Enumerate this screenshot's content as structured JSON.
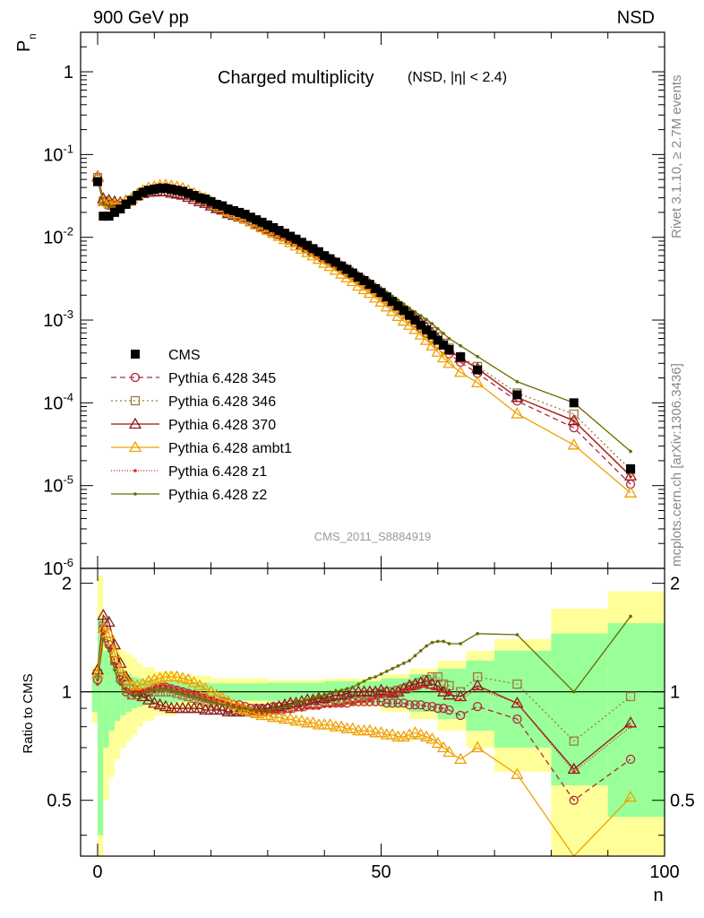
{
  "header": {
    "left": "900 GeV pp",
    "right": "NSD"
  },
  "side_labels": {
    "rivet": "Rivet 3.1.10, ≥ 2.7M events",
    "mcplots": "mcplots.cern.ch [arXiv:1306.3436]"
  },
  "chart_data": {
    "type": "line",
    "title": "Charged multiplicity",
    "subtitle": "(NSD, |η| < 2.4)",
    "analysis_id": "CMS_2011_S8884919",
    "xlabel": "n",
    "ylabel": "P",
    "ylabel_sub": "n",
    "ratio_ylabel": "Ratio to CMS",
    "xlim": [
      -3,
      100
    ],
    "ylim": [
      1e-06,
      3
    ],
    "ratio_ylim": [
      0.35,
      2.2
    ],
    "x_ticks": [
      "0",
      "50",
      "100"
    ],
    "y_ticks": [
      "10^-6",
      "10^-5",
      "10^-4",
      "10^-3",
      "10^-2",
      "10^-1",
      "1"
    ],
    "ratio_ticks": [
      "0.5",
      "1",
      "2"
    ],
    "legend": [
      "CMS",
      "Pythia 6.428 345",
      "Pythia 6.428 346",
      "Pythia 6.428 370",
      "Pythia 6.428 ambt1",
      "Pythia 6.428 z1",
      "Pythia 6.428 z2"
    ],
    "data": {
      "name": "CMS",
      "x": [
        0,
        1,
        2,
        3,
        4,
        5,
        6,
        7,
        8,
        9,
        10,
        11,
        12,
        13,
        14,
        15,
        16,
        17,
        18,
        19,
        20,
        21,
        22,
        23,
        24,
        25,
        26,
        27,
        28,
        29,
        30,
        31,
        32,
        33,
        34,
        35,
        36,
        37,
        38,
        39,
        40,
        41,
        42,
        43,
        44,
        45,
        46,
        47,
        48,
        49,
        50,
        51,
        52,
        53,
        54,
        55,
        56,
        57,
        58,
        59,
        60,
        61,
        62,
        64,
        67,
        74,
        84,
        94
      ],
      "y": [
        0.047,
        0.018,
        0.018,
        0.02,
        0.022,
        0.025,
        0.028,
        0.032,
        0.035,
        0.037,
        0.038,
        0.039,
        0.039,
        0.038,
        0.037,
        0.036,
        0.034,
        0.032,
        0.03,
        0.029,
        0.027,
        0.025,
        0.024,
        0.022,
        0.021,
        0.02,
        0.019,
        0.0175,
        0.0163,
        0.0152,
        0.0141,
        0.0131,
        0.0121,
        0.0112,
        0.0103,
        0.0095,
        0.0087,
        0.008,
        0.0073,
        0.0067,
        0.006,
        0.0055,
        0.005,
        0.0045,
        0.0041,
        0.0037,
        0.0033,
        0.003,
        0.0027,
        0.0024,
        0.00215,
        0.0019,
        0.00168,
        0.00148,
        0.0013,
        0.00114,
        0.001,
        0.00087,
        0.00076,
        0.00066,
        0.00057,
        0.0005,
        0.00044,
        0.00036,
        0.00025,
        0.000125,
        0.0001,
        1.6e-05
      ],
      "band_x_edges": [
        -1,
        0,
        1,
        2,
        3,
        4,
        5,
        6,
        7,
        8,
        10,
        14,
        20,
        30,
        40,
        50,
        55,
        60,
        65,
        70,
        80,
        90,
        100
      ],
      "band_stat_rel": [
        0.12,
        0.6,
        0.3,
        0.22,
        0.17,
        0.14,
        0.12,
        0.1,
        0.09,
        0.08,
        0.07,
        0.06,
        0.055,
        0.06,
        0.07,
        0.09,
        0.12,
        0.16,
        0.22,
        0.3,
        0.45,
        0.55,
        0.6
      ],
      "band_tot_rel": [
        0.18,
        1.1,
        0.5,
        0.42,
        0.35,
        0.3,
        0.27,
        0.24,
        0.2,
        0.17,
        0.14,
        0.11,
        0.09,
        0.08,
        0.09,
        0.12,
        0.16,
        0.22,
        0.3,
        0.4,
        0.7,
        0.9,
        1.0
      ]
    },
    "series": [
      {
        "name": "Pythia 6.428 345",
        "color": "#b2263a",
        "dash": "6,4",
        "marker": "circle",
        "marker_every": 1,
        "x": [
          0,
          1,
          2,
          3,
          4,
          5,
          6,
          7,
          8,
          9,
          10,
          11,
          12,
          13,
          14,
          15,
          16,
          17,
          18,
          19,
          20,
          21,
          22,
          23,
          24,
          25,
          26,
          27,
          28,
          29,
          30,
          31,
          32,
          33,
          34,
          35,
          36,
          37,
          38,
          39,
          40,
          41,
          42,
          43,
          44,
          45,
          46,
          47,
          48,
          49,
          50,
          51,
          52,
          53,
          54,
          55,
          56,
          57,
          58,
          59,
          60,
          61,
          62,
          64,
          67,
          74,
          84,
          94
        ],
        "ratio": [
          1.08,
          1.5,
          1.35,
          1.22,
          1.08,
          1.0,
          0.98,
          0.98,
          0.99,
          1.0,
          1.02,
          1.03,
          1.03,
          1.02,
          1.01,
          1.0,
          0.99,
          0.98,
          0.97,
          0.96,
          0.95,
          0.95,
          0.94,
          0.93,
          0.92,
          0.92,
          0.91,
          0.9,
          0.9,
          0.9,
          0.9,
          0.91,
          0.91,
          0.91,
          0.92,
          0.92,
          0.92,
          0.92,
          0.92,
          0.92,
          0.93,
          0.93,
          0.93,
          0.93,
          0.93,
          0.94,
          0.94,
          0.94,
          0.94,
          0.94,
          0.94,
          0.93,
          0.93,
          0.93,
          0.93,
          0.92,
          0.92,
          0.92,
          0.91,
          0.91,
          0.9,
          0.9,
          0.89,
          0.86,
          0.91,
          0.84,
          0.5,
          0.65
        ]
      },
      {
        "name": "Pythia 6.428 346",
        "color": "#a07840",
        "dash": "2,3",
        "marker": "square",
        "marker_every": 1,
        "x": [
          0,
          1,
          2,
          3,
          4,
          5,
          6,
          7,
          8,
          9,
          10,
          11,
          12,
          13,
          14,
          15,
          16,
          17,
          18,
          19,
          20,
          21,
          22,
          23,
          24,
          25,
          26,
          27,
          28,
          29,
          30,
          31,
          32,
          33,
          34,
          35,
          36,
          37,
          38,
          39,
          40,
          41,
          42,
          43,
          44,
          45,
          46,
          47,
          48,
          49,
          50,
          51,
          52,
          53,
          54,
          55,
          56,
          57,
          58,
          59,
          60,
          61,
          62,
          64,
          67,
          74,
          84,
          94
        ],
        "ratio": [
          1.12,
          1.52,
          1.38,
          1.22,
          1.1,
          1.02,
          0.98,
          0.98,
          0.99,
          1.0,
          1.0,
          1.0,
          1.0,
          1.0,
          0.99,
          0.98,
          0.97,
          0.96,
          0.95,
          0.94,
          0.93,
          0.92,
          0.91,
          0.9,
          0.89,
          0.89,
          0.88,
          0.88,
          0.88,
          0.88,
          0.88,
          0.89,
          0.89,
          0.9,
          0.9,
          0.91,
          0.91,
          0.92,
          0.92,
          0.93,
          0.94,
          0.94,
          0.95,
          0.95,
          0.96,
          0.96,
          0.97,
          0.98,
          0.98,
          0.99,
          0.99,
          1.0,
          1.0,
          1.01,
          1.02,
          1.03,
          1.04,
          1.06,
          1.08,
          1.1,
          1.1,
          1.05,
          1.04,
          1.0,
          1.1,
          1.05,
          0.73,
          0.97
        ]
      },
      {
        "name": "Pythia 6.428 370",
        "color": "#8b1a1a",
        "dash": "",
        "marker": "triangle",
        "marker_every": 1,
        "x": [
          0,
          1,
          2,
          3,
          4,
          5,
          6,
          7,
          8,
          9,
          10,
          11,
          12,
          13,
          14,
          15,
          16,
          17,
          18,
          19,
          20,
          21,
          22,
          23,
          24,
          25,
          26,
          27,
          28,
          29,
          30,
          31,
          32,
          33,
          34,
          35,
          36,
          37,
          38,
          39,
          40,
          41,
          42,
          43,
          44,
          45,
          46,
          47,
          48,
          49,
          50,
          51,
          52,
          53,
          54,
          55,
          56,
          57,
          58,
          59,
          60,
          61,
          62,
          64,
          67,
          74,
          84,
          94
        ],
        "ratio": [
          1.15,
          1.63,
          1.56,
          1.35,
          1.2,
          1.1,
          1.05,
          1.0,
          0.97,
          0.95,
          0.93,
          0.92,
          0.91,
          0.9,
          0.9,
          0.9,
          0.9,
          0.9,
          0.9,
          0.89,
          0.89,
          0.89,
          0.89,
          0.88,
          0.88,
          0.88,
          0.88,
          0.88,
          0.89,
          0.89,
          0.9,
          0.9,
          0.91,
          0.92,
          0.93,
          0.93,
          0.94,
          0.95,
          0.95,
          0.96,
          0.96,
          0.97,
          0.98,
          0.98,
          0.99,
          1.0,
          1.0,
          1.0,
          1.0,
          1.0,
          1.01,
          1.0,
          0.99,
          1.0,
          1.02,
          1.04,
          1.05,
          1.06,
          1.07,
          1.05,
          1.04,
          1.0,
          0.98,
          0.97,
          1.04,
          0.93,
          0.61,
          0.82
        ]
      },
      {
        "name": "Pythia 6.428 ambt1",
        "color": "#f0a000",
        "dash": "",
        "marker": "triangle",
        "marker_every": 1,
        "x": [
          0,
          1,
          2,
          3,
          4,
          5,
          6,
          7,
          8,
          9,
          10,
          11,
          12,
          13,
          14,
          15,
          16,
          17,
          18,
          19,
          20,
          21,
          22,
          23,
          24,
          25,
          26,
          27,
          28,
          29,
          30,
          31,
          32,
          33,
          34,
          35,
          36,
          37,
          38,
          39,
          40,
          41,
          42,
          43,
          44,
          45,
          46,
          47,
          48,
          49,
          50,
          51,
          52,
          53,
          54,
          55,
          56,
          57,
          58,
          59,
          60,
          61,
          62,
          64,
          67,
          74,
          84,
          94
        ],
        "ratio": [
          1.12,
          1.5,
          1.45,
          1.28,
          1.15,
          1.08,
          1.05,
          1.04,
          1.05,
          1.07,
          1.08,
          1.09,
          1.1,
          1.1,
          1.1,
          1.09,
          1.08,
          1.06,
          1.04,
          1.02,
          1.0,
          0.98,
          0.96,
          0.94,
          0.92,
          0.9,
          0.89,
          0.88,
          0.87,
          0.86,
          0.86,
          0.85,
          0.85,
          0.84,
          0.84,
          0.83,
          0.83,
          0.82,
          0.82,
          0.81,
          0.81,
          0.81,
          0.8,
          0.8,
          0.79,
          0.79,
          0.78,
          0.78,
          0.78,
          0.77,
          0.77,
          0.76,
          0.76,
          0.75,
          0.75,
          0.76,
          0.77,
          0.76,
          0.75,
          0.74,
          0.72,
          0.7,
          0.68,
          0.65,
          0.7,
          0.59,
          0.31,
          0.51
        ]
      },
      {
        "name": "Pythia 6.428 z1",
        "color": "#e02020",
        "dash": "1,2",
        "marker": "dot",
        "marker_every": 1,
        "x": [
          0,
          1,
          2,
          3,
          4,
          5,
          6,
          7,
          8,
          9,
          10,
          11,
          12,
          13,
          14,
          15,
          16,
          17,
          18,
          19,
          20,
          21,
          22,
          23,
          24,
          25,
          26,
          27,
          28,
          29,
          30,
          31,
          32,
          33,
          34,
          35,
          36,
          37,
          38,
          39,
          40,
          41,
          42,
          43,
          44,
          45,
          46,
          47,
          48,
          49,
          50,
          51,
          52,
          53,
          54,
          55,
          56,
          57,
          58,
          59,
          60,
          61,
          62,
          64,
          67,
          74,
          84,
          94
        ],
        "ratio": [
          1.05,
          1.45,
          1.32,
          1.2,
          1.08,
          1.02,
          1.0,
          1.0,
          1.01,
          1.02,
          1.03,
          1.04,
          1.04,
          1.03,
          1.02,
          1.01,
          1.0,
          0.99,
          0.98,
          0.97,
          0.96,
          0.95,
          0.94,
          0.93,
          0.92,
          0.91,
          0.9,
          0.89,
          0.88,
          0.88,
          0.88,
          0.88,
          0.88,
          0.88,
          0.88,
          0.89,
          0.89,
          0.9,
          0.9,
          0.9,
          0.91,
          0.91,
          0.92,
          0.92,
          0.93,
          0.93,
          0.94,
          0.94,
          0.95,
          0.96,
          0.97,
          0.98,
          0.99,
          1.0,
          1.01,
          1.02,
          1.02,
          1.03,
          1.03,
          1.02,
          1.01,
          1.0,
          0.99,
          0.95,
          1.02,
          0.93,
          0.6,
          0.8
        ]
      },
      {
        "name": "Pythia 6.428 z2",
        "color": "#6b6b00",
        "dash": "",
        "marker": "dot",
        "marker_every": 1,
        "x": [
          0,
          1,
          2,
          3,
          4,
          5,
          6,
          7,
          8,
          9,
          10,
          11,
          12,
          13,
          14,
          15,
          16,
          17,
          18,
          19,
          20,
          21,
          22,
          23,
          24,
          25,
          26,
          27,
          28,
          29,
          30,
          31,
          32,
          33,
          34,
          35,
          36,
          37,
          38,
          39,
          40,
          41,
          42,
          43,
          44,
          45,
          46,
          47,
          48,
          49,
          50,
          51,
          52,
          53,
          54,
          55,
          56,
          57,
          58,
          59,
          60,
          61,
          62,
          64,
          67,
          74,
          84,
          94
        ],
        "ratio": [
          1.08,
          1.4,
          1.3,
          1.15,
          1.05,
          1.0,
          0.98,
          0.98,
          0.99,
          1.0,
          1.01,
          1.02,
          1.02,
          1.01,
          1.0,
          0.99,
          0.98,
          0.97,
          0.96,
          0.95,
          0.94,
          0.93,
          0.92,
          0.92,
          0.91,
          0.9,
          0.9,
          0.89,
          0.89,
          0.89,
          0.89,
          0.9,
          0.9,
          0.91,
          0.92,
          0.93,
          0.94,
          0.95,
          0.96,
          0.97,
          0.98,
          0.99,
          1.0,
          1.01,
          1.02,
          1.03,
          1.05,
          1.07,
          1.09,
          1.1,
          1.12,
          1.14,
          1.16,
          1.18,
          1.2,
          1.22,
          1.26,
          1.3,
          1.34,
          1.37,
          1.38,
          1.38,
          1.36,
          1.36,
          1.45,
          1.44,
          1.0,
          1.62
        ]
      }
    ]
  }
}
